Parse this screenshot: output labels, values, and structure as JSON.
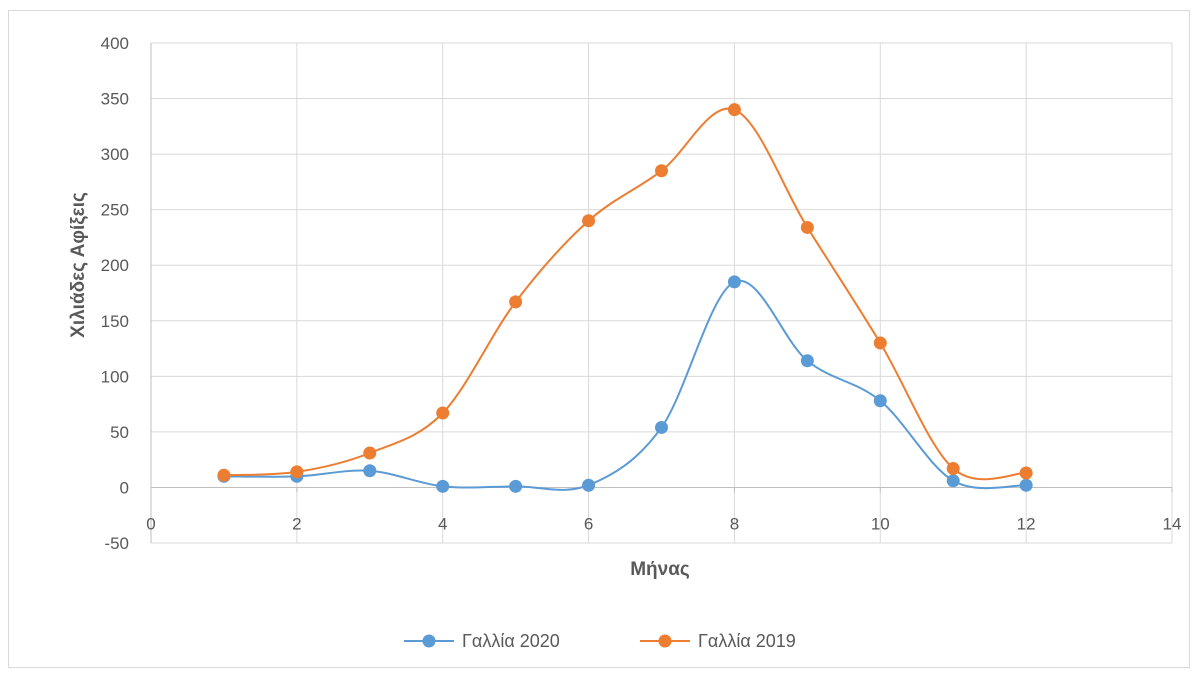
{
  "chart_data": {
    "type": "scatter",
    "title": "",
    "xlabel": "Μήνας",
    "ylabel": "Χιλιάδες Αφίξεις",
    "xlim": [
      0,
      14
    ],
    "ylim": [
      -50,
      400
    ],
    "x_ticks": [
      0,
      2,
      4,
      6,
      8,
      10,
      12,
      14
    ],
    "y_ticks": [
      -50,
      0,
      50,
      100,
      150,
      200,
      250,
      300,
      350,
      400
    ],
    "grid": true,
    "legend_position": "bottom",
    "series": [
      {
        "name": "Γαλλία 2020",
        "color": "#5b9bd5",
        "x": [
          1,
          2,
          3,
          4,
          5,
          6,
          7,
          8,
          9,
          10,
          11,
          12
        ],
        "y": [
          10,
          10,
          15,
          1,
          1,
          2,
          54,
          185,
          114,
          78,
          6,
          2
        ]
      },
      {
        "name": "Γαλλία 2019",
        "color": "#ed7d31",
        "x": [
          1,
          2,
          3,
          4,
          5,
          6,
          7,
          8,
          9,
          10,
          11,
          12
        ],
        "y": [
          11,
          14,
          31,
          67,
          167,
          240,
          285,
          340,
          234,
          130,
          17,
          13
        ]
      }
    ]
  }
}
